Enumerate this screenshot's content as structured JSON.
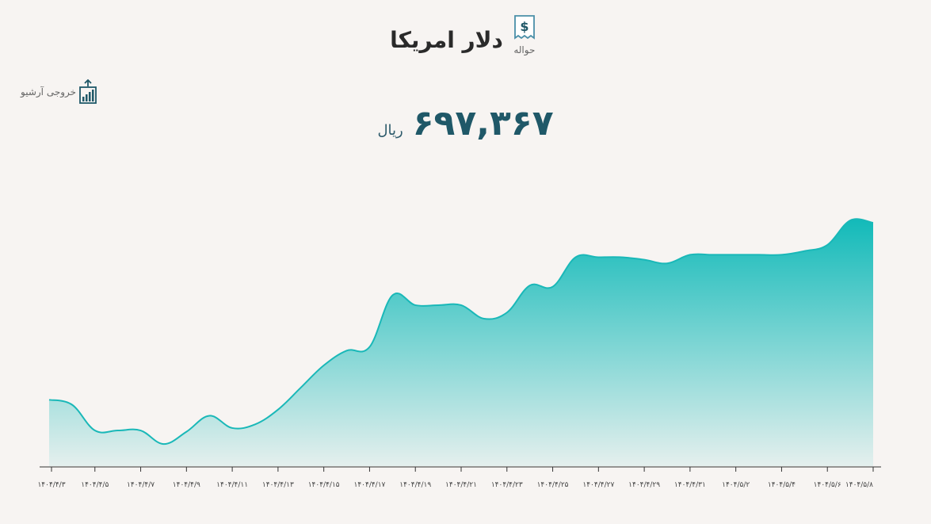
{
  "header": {
    "title": "دلار امریکا",
    "subtitle": "حواله",
    "icon": "dollar-receipt-icon"
  },
  "toolbar": {
    "export_label": "خروجی آرشیو",
    "export_icon": "chart-export-icon"
  },
  "price": {
    "value": "۶۹۷,۳۶۷",
    "unit": "ریال"
  },
  "colors": {
    "line": "#1ab8b8",
    "fill_top": "#12bab9",
    "fill_bottom": "#12bab9",
    "axis": "#333333",
    "title": "#2a2a2a",
    "price": "#1f5868"
  },
  "chart_data": {
    "type": "area",
    "title": "",
    "xlabel": "",
    "ylabel": "",
    "grid": false,
    "legend": "none",
    "ylim": [
      0,
      100
    ],
    "x_tick_labels": [
      "۱۴۰۴/۴/۳",
      "۱۴۰۴/۴/۵",
      "۱۴۰۴/۴/۷",
      "۱۴۰۴/۴/۹",
      "۱۴۰۴/۴/۱۱",
      "۱۴۰۴/۴/۱۳",
      "۱۴۰۴/۴/۱۵",
      "۱۴۰۴/۴/۱۷",
      "۱۴۰۴/۴/۱۹",
      "۱۴۰۴/۴/۲۱",
      "۱۴۰۴/۴/۲۳",
      "۱۴۰۴/۴/۲۵",
      "۱۴۰۴/۴/۲۷",
      "۱۴۰۴/۴/۲۹",
      "۱۴۰۴/۴/۳۱",
      "۱۴۰۴/۵/۲",
      "۱۴۰۴/۵/۴",
      "۱۴۰۴/۵/۶",
      "۱۴۰۴/۵/۸"
    ],
    "series": [
      {
        "x": [
          0,
          0.5,
          1,
          1.5,
          2,
          2.5,
          3,
          3.5,
          4,
          4.5,
          5,
          5.5,
          6,
          6.5,
          7,
          7.5,
          8,
          8.5,
          9,
          9.5,
          10,
          10.5,
          11,
          11.5,
          12,
          12.5,
          13,
          13.5,
          14,
          14.5,
          15,
          15.5,
          16,
          16.5,
          17,
          17.5,
          18
        ],
        "values": [
          27,
          25,
          14.5,
          14.5,
          14.5,
          9,
          14,
          20.5,
          15.5,
          17,
          23,
          32,
          41,
          47,
          48.5,
          69.5,
          65.5,
          65.5,
          65.5,
          60,
          62.5,
          73.5,
          73,
          85,
          85,
          85,
          84,
          82.5,
          86,
          86,
          86,
          86,
          86,
          87.5,
          90,
          100,
          99
        ]
      }
    ]
  }
}
